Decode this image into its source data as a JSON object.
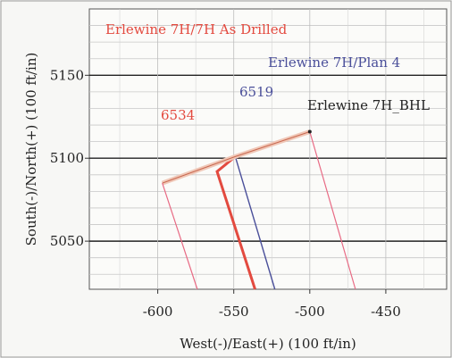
{
  "chart_data": {
    "type": "line",
    "xlabel": "West(-)/East(+) (100 ft/in)",
    "ylabel": "South(-)/North(+) (100 ft/in)",
    "xlim": [
      -645,
      -410
    ],
    "ylim": [
      5021,
      5190
    ],
    "x_ticks": [
      -600,
      -550,
      -500,
      -450
    ],
    "y_ticks": [
      5050,
      5100,
      5150
    ],
    "x_tick_labels": [
      "-600",
      "-550",
      "-500",
      "-450"
    ],
    "y_tick_labels": [
      "5050",
      "5100",
      "5150"
    ],
    "grid": true,
    "series": [
      {
        "name": "Erlewine 7H/7H As Drilled",
        "color": "#e34a3f",
        "points": [
          [
            -549,
            5101
          ],
          [
            -561,
            5092
          ],
          [
            -536,
            5021
          ]
        ]
      },
      {
        "name": "Erlewine 7H/Plan 4",
        "color": "#4a4f9a",
        "points": [
          [
            -549,
            5101
          ],
          [
            -523,
            5021
          ]
        ]
      },
      {
        "name": "",
        "color": "#e7a38c",
        "points": [
          [
            -597,
            5085
          ],
          [
            -549,
            5101
          ],
          [
            -500,
            5116
          ]
        ]
      },
      {
        "name": "",
        "color": "#e86a84",
        "points": [
          [
            -597,
            5085
          ],
          [
            -574,
            5021
          ]
        ]
      },
      {
        "name": "",
        "color": "#e86a84",
        "points": [
          [
            -500,
            5116
          ],
          [
            -470,
            5021
          ]
        ]
      }
    ],
    "markers": [
      {
        "label": "Erlewine 7H_BHL",
        "x": -500,
        "y": 5116,
        "color": "#222222"
      }
    ],
    "annotations": [
      {
        "text": "Erlewine 7H/7H As Drilled",
        "color": "#e34a3f"
      },
      {
        "text": "Erlewine 7H/Plan 4",
        "color": "#4a4f9a"
      },
      {
        "text": "6519",
        "color": "#4a4f9a"
      },
      {
        "text": "6534",
        "color": "#e34a3f"
      },
      {
        "text": "Erlewine 7H_BHL",
        "color": "#222222"
      }
    ]
  }
}
